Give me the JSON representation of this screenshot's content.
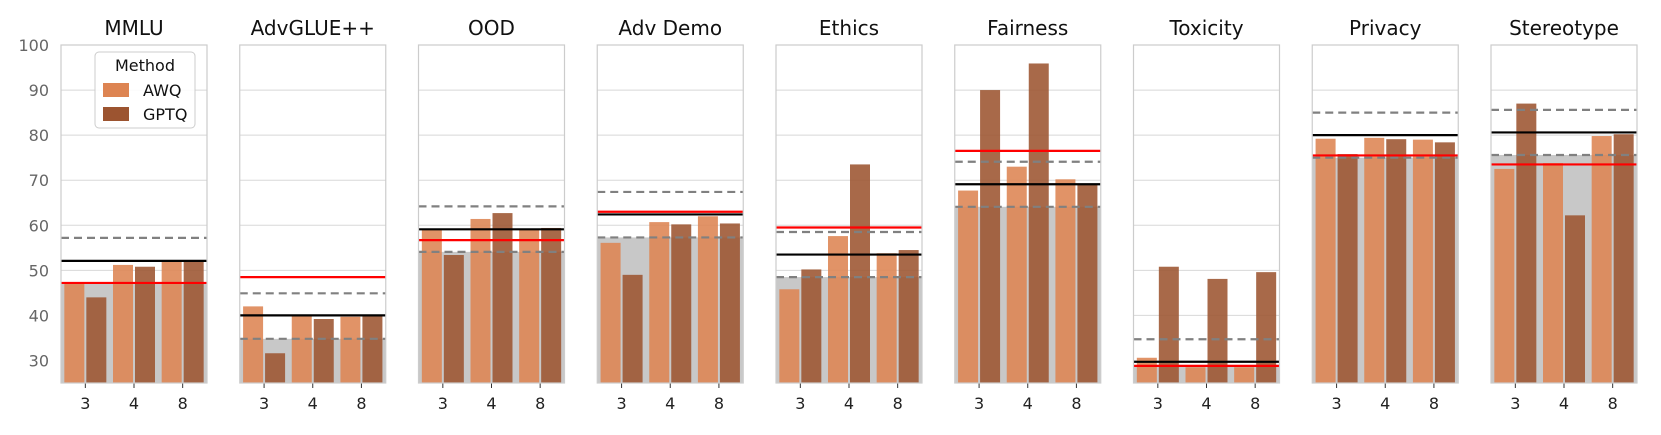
{
  "colors": {
    "awq": "#dd8452",
    "gptq": "#9c5430",
    "band": "#c8c8c8",
    "grid": "#d8d8d8",
    "red_line": "#ff0000",
    "black_line": "#000000",
    "dashed_line": "#808080"
  },
  "legend": {
    "title": "Method",
    "entries": [
      "AWQ",
      "GPTQ"
    ]
  },
  "chart_data": {
    "type": "bar",
    "ylim": [
      25,
      100
    ],
    "yticks": [
      "30",
      "40",
      "50",
      "60",
      "70",
      "80",
      "90",
      "100"
    ],
    "ytick_values": [
      30,
      40,
      50,
      60,
      70,
      80,
      90,
      100
    ],
    "categories": [
      "3",
      "4",
      "8"
    ],
    "panels": [
      {
        "title": "MMLU",
        "awq": [
          47.4,
          51.2,
          52.0
        ],
        "gptq": [
          44.0,
          50.8,
          52.0
        ],
        "band": 47.1,
        "black": 52.1,
        "red": 47.2,
        "dashed_upper": 57.2,
        "dashed_lower": null
      },
      {
        "title": "AdvGLUE++",
        "awq": [
          42.0,
          39.8,
          39.7
        ],
        "gptq": [
          31.6,
          39.2,
          39.8
        ],
        "band": 34.8,
        "black": 40.0,
        "red": 48.5,
        "dashed_upper": 44.9,
        "dashed_lower": 34.8
      },
      {
        "title": "OOD",
        "awq": [
          59.1,
          61.4,
          59.0
        ],
        "gptq": [
          53.4,
          62.7,
          59.4
        ],
        "band": 54.1,
        "black": 59.1,
        "red": 56.7,
        "dashed_upper": 64.2,
        "dashed_lower": 54.1
      },
      {
        "title": "Adv Demo",
        "awq": [
          56.1,
          60.7,
          62.0
        ],
        "gptq": [
          49.0,
          60.2,
          60.4
        ],
        "band": 57.3,
        "black": 62.4,
        "red": 63.0,
        "dashed_upper": 67.4,
        "dashed_lower": 57.3
      },
      {
        "title": "Ethics",
        "awq": [
          45.8,
          57.6,
          53.8
        ],
        "gptq": [
          50.2,
          73.5,
          54.5
        ],
        "band": 48.5,
        "black": 53.5,
        "red": 59.5,
        "dashed_upper": 58.5,
        "dashed_lower": 48.5
      },
      {
        "title": "Fairness",
        "awq": [
          67.7,
          73.0,
          70.2
        ],
        "gptq": [
          90.0,
          95.9,
          69.2
        ],
        "band": 64.1,
        "black": 69.1,
        "red": 76.5,
        "dashed_upper": 74.1,
        "dashed_lower": 64.1
      },
      {
        "title": "Toxicity",
        "awq": [
          30.6,
          28.5,
          28.5
        ],
        "gptq": [
          50.8,
          48.1,
          49.6
        ],
        "band": 29.0,
        "black": 29.7,
        "red": 28.8,
        "dashed_upper": 34.7,
        "dashed_lower": null
      },
      {
        "title": "Privacy",
        "awq": [
          79.2,
          79.4,
          79.0
        ],
        "gptq": [
          75.8,
          79.1,
          78.4
        ],
        "band": 75.0,
        "black": 80.0,
        "red": 75.5,
        "dashed_upper": 85.0,
        "dashed_lower": 75.0
      },
      {
        "title": "Stereotype",
        "awq": [
          72.5,
          73.8,
          79.8
        ],
        "gptq": [
          87.0,
          62.2,
          80.2
        ],
        "band": 75.6,
        "black": 80.6,
        "red": 73.5,
        "dashed_upper": 85.6,
        "dashed_lower": 75.6
      }
    ]
  }
}
